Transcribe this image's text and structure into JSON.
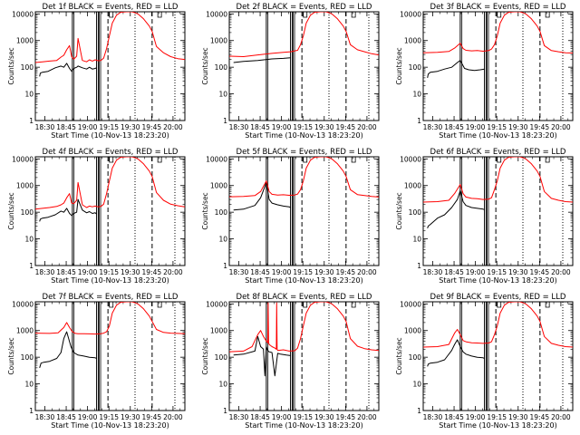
{
  "chart_data": {
    "type": "line",
    "layout": "3x3 grid of panels",
    "series_colors": {
      "events": "#000000",
      "lld": "#ff0000",
      "markers": "#000000"
    },
    "xlabel": "Start Time (10-Nov-13 18:23:20)",
    "ylabel": "Counts/sec",
    "xlim_minutes_since_start": [
      0,
      105
    ],
    "x_tick_labels": [
      "18:30",
      "18:45",
      "19:00",
      "19:15",
      "19:30",
      "19:45",
      "20:00"
    ],
    "x_tick_values_minutes": [
      6.67,
      21.67,
      36.67,
      51.67,
      66.67,
      81.67,
      96.67
    ],
    "yscale": "log",
    "ylim": [
      1,
      12000
    ],
    "y_tick_labels": [
      "1",
      "10",
      "100",
      "1000",
      "10000"
    ],
    "y_tick_values": [
      1,
      10,
      100,
      1000,
      10000
    ],
    "vertical_markers": {
      "solid": [
        26,
        43,
        44.7
      ],
      "dashed": [
        51,
        82
      ],
      "dotted": [
        70,
        98
      ]
    },
    "panels": [
      {
        "title": "Det 1f BLACK = Events, RED = LLD",
        "series": [
          {
            "key": "events",
            "x": [
              3,
              3.5,
              5,
              9,
              14,
              18,
              20,
              22,
              24,
              25.5,
              27,
              29,
              30,
              33,
              36,
              38,
              40,
              42,
              43
            ],
            "y": [
              45,
              60,
              65,
              70,
              95,
              110,
              100,
              140,
              90,
              70,
              90,
              100,
              110,
              95,
              85,
              100,
              85,
              90,
              95
            ]
          },
          {
            "key": "lld",
            "x": [
              0,
              5,
              10,
              15,
              18,
              20,
              22,
              24,
              25.5,
              27,
              29,
              30,
              33,
              36,
              38,
              40,
              42,
              44,
              46,
              48,
              50,
              52,
              54,
              57,
              60,
              64,
              68,
              72,
              76,
              80,
              82,
              85,
              90,
              95,
              100,
              105
            ],
            "y": [
              150,
              160,
              170,
              180,
              240,
              280,
              450,
              650,
              250,
              200,
              260,
              1200,
              180,
              160,
              190,
              170,
              190,
              175,
              180,
              220,
              500,
              1500,
              4500,
              9000,
              11500,
              12000,
              12000,
              10000,
              6500,
              3500,
              2200,
              600,
              350,
              250,
              210,
              195
            ]
          }
        ]
      },
      {
        "title": "Det 2f BLACK = Events, RED = LLD",
        "series": [
          {
            "key": "events",
            "x": [
              3,
              10,
              20,
              30,
              38,
              43
            ],
            "y": [
              150,
              165,
              180,
              205,
              215,
              225
            ]
          },
          {
            "key": "lld",
            "x": [
              0,
              10,
              20,
              30,
              38,
              43,
              46,
              48,
              50,
              52,
              54,
              57,
              60,
              64,
              68,
              72,
              76,
              80,
              82,
              85,
              90,
              95,
              100,
              105
            ],
            "y": [
              260,
              250,
              290,
              330,
              360,
              380,
              410,
              430,
              700,
              1500,
              4500,
              9000,
              11500,
              12000,
              12000,
              10000,
              6500,
              3500,
              2200,
              700,
              450,
              380,
              320,
              290
            ]
          }
        ]
      },
      {
        "title": "Det 3f BLACK = Events, RED = LLD",
        "series": [
          {
            "key": "events",
            "x": [
              3,
              3.5,
              5,
              10,
              15,
              20,
              24,
              26,
              29,
              32,
              36,
              40,
              43
            ],
            "y": [
              40,
              55,
              65,
              70,
              85,
              100,
              150,
              180,
              90,
              80,
              75,
              80,
              85
            ]
          },
          {
            "key": "lld",
            "x": [
              0,
              10,
              18,
              22,
              26,
              28,
              30,
              34,
              38,
              42,
              46,
              48,
              50,
              52,
              54,
              57,
              60,
              64,
              68,
              72,
              76,
              80,
              82,
              85,
              90,
              95,
              100,
              105
            ],
            "y": [
              350,
              360,
              390,
              520,
              800,
              500,
              430,
              410,
              420,
              400,
              420,
              480,
              700,
              1500,
              4500,
              9000,
              11500,
              12000,
              12000,
              10000,
              6500,
              3500,
              2200,
              650,
              420,
              380,
              350,
              340
            ]
          }
        ]
      },
      {
        "title": "Det 4f BLACK = Events, RED = LLD",
        "series": [
          {
            "key": "events",
            "x": [
              3,
              3.5,
              5,
              9,
              14,
              18,
              20,
              22,
              24,
              25.5,
              27,
              29,
              30,
              33,
              36,
              38,
              40,
              42,
              43
            ],
            "y": [
              45,
              55,
              60,
              65,
              80,
              110,
              100,
              140,
              90,
              75,
              90,
              100,
              300,
              120,
              95,
              105,
              90,
              95,
              85
            ]
          },
          {
            "key": "lld",
            "x": [
              0,
              5,
              10,
              15,
              18,
              20,
              22,
              24,
              25.5,
              27,
              29,
              30,
              33,
              36,
              38,
              40,
              42,
              44,
              46,
              48,
              50,
              52,
              54,
              57,
              60,
              64,
              68,
              72,
              76,
              80,
              82,
              85,
              90,
              95,
              100,
              105
            ],
            "y": [
              130,
              140,
              150,
              165,
              190,
              220,
              350,
              500,
              220,
              210,
              280,
              1300,
              190,
              150,
              170,
              160,
              170,
              160,
              165,
              200,
              500,
              1500,
              4500,
              9000,
              11500,
              12000,
              12000,
              10000,
              6500,
              3500,
              2200,
              550,
              280,
              200,
              175,
              160
            ]
          }
        ]
      },
      {
        "title": "Det 5f BLACK = Events, RED = LLD",
        "series": [
          {
            "key": "events",
            "x": [
              3,
              10,
              18,
              22,
              26,
              28,
              30,
              34,
              38,
              42,
              43
            ],
            "y": [
              120,
              130,
              180,
              350,
              1300,
              300,
              220,
              190,
              170,
              160,
              150
            ]
          },
          {
            "key": "lld",
            "x": [
              0,
              10,
              18,
              22,
              26,
              28,
              30,
              34,
              38,
              42,
              46,
              48,
              50,
              52,
              54,
              57,
              60,
              64,
              68,
              72,
              76,
              80,
              82,
              85,
              90,
              95,
              100,
              105
            ],
            "y": [
              380,
              390,
              420,
              600,
              1500,
              600,
              470,
              440,
              450,
              430,
              440,
              480,
              700,
              1500,
              4500,
              9000,
              11500,
              12000,
              12000,
              10000,
              6500,
              3500,
              2200,
              700,
              460,
              420,
              390,
              370
            ]
          }
        ]
      },
      {
        "title": "Det 6f BLACK = Events, RED = LLD",
        "series": [
          {
            "key": "events",
            "x": [
              3,
              3.5,
              5,
              10,
              15,
              20,
              24,
              26,
              28,
              30,
              34,
              38,
              42,
              43
            ],
            "y": [
              25,
              30,
              35,
              60,
              80,
              150,
              300,
              650,
              250,
              180,
              150,
              140,
              130,
              125
            ]
          },
          {
            "key": "lld",
            "x": [
              0,
              10,
              18,
              22,
              26,
              28,
              30,
              34,
              38,
              42,
              46,
              48,
              50,
              52,
              54,
              57,
              60,
              64,
              68,
              72,
              76,
              80,
              82,
              85,
              90,
              95,
              100,
              105
            ],
            "y": [
              240,
              250,
              280,
              500,
              1100,
              500,
              370,
              330,
              320,
              300,
              310,
              350,
              700,
              1500,
              4500,
              9000,
              11500,
              12000,
              12000,
              10000,
              6500,
              3500,
              2200,
              600,
              330,
              280,
              250,
              240
            ]
          }
        ]
      },
      {
        "title": "Det 7f BLACK = Events, RED = LLD",
        "series": [
          {
            "key": "events",
            "x": [
              3,
              4,
              6,
              10,
              15,
              18,
              20,
              22,
              25,
              27,
              30,
              34,
              38,
              42,
              43
            ],
            "y": [
              40,
              60,
              65,
              70,
              90,
              150,
              500,
              900,
              250,
              150,
              120,
              110,
              100,
              95,
              90
            ]
          },
          {
            "key": "lld",
            "x": [
              0,
              10,
              16,
              20,
              22,
              24,
              26,
              28,
              30,
              34,
              38,
              42,
              46,
              48,
              50,
              52,
              54,
              57,
              60,
              64,
              68,
              72,
              76,
              80,
              82,
              85,
              90,
              95,
              100,
              105
            ],
            "y": [
              800,
              780,
              820,
              1300,
              2000,
              1300,
              900,
              780,
              760,
              760,
              750,
              740,
              760,
              800,
              900,
              1500,
              4500,
              9000,
              11500,
              12000,
              12000,
              10000,
              6500,
              3500,
              2200,
              1100,
              850,
              800,
              780,
              760
            ]
          }
        ]
      },
      {
        "title": "Det 8f BLACK = Events, RED = LLD",
        "series": [
          {
            "key": "events",
            "x": [
              3,
              10,
              18,
              20,
              22,
              24,
              25,
              26,
              27,
              28,
              30,
              32,
              34,
              36,
              40,
              43
            ],
            "y": [
              120,
              130,
              170,
              600,
              250,
              200,
              20,
              250,
              180,
              160,
              150,
              20,
              140,
              130,
              120,
              115
            ]
          },
          {
            "key": "lld",
            "x": [
              0,
              10,
              16,
              20,
              22,
              24,
              26,
              27,
              27.3,
              27.6,
              28,
              30,
              32,
              33,
              33.3,
              33.6,
              34,
              38,
              42,
              46,
              48,
              50,
              52,
              54,
              57,
              60,
              64,
              68,
              72,
              76,
              80,
              82,
              85,
              90,
              95,
              100,
              105
            ],
            "y": [
              160,
              170,
              250,
              700,
              1000,
              600,
              400,
              350,
              11000,
              350,
              300,
              250,
              220,
              200,
              11000,
              200,
              180,
              190,
              170,
              175,
              220,
              500,
              1500,
              4500,
              9000,
              11500,
              12000,
              12000,
              10000,
              6500,
              3500,
              2200,
              500,
              260,
              210,
              190,
              180
            ]
          }
        ]
      },
      {
        "title": "Det 9f BLACK = Events, RED = LLD",
        "series": [
          {
            "key": "events",
            "x": [
              3,
              3.5,
              5,
              10,
              15,
              20,
              22,
              24,
              26,
              28,
              30,
              34,
              38,
              42,
              43
            ],
            "y": [
              45,
              55,
              60,
              65,
              80,
              180,
              300,
              450,
              250,
              160,
              130,
              110,
              100,
              95,
              90
            ]
          },
          {
            "key": "lld",
            "x": [
              0,
              10,
              18,
              22,
              24,
              26,
              28,
              30,
              34,
              38,
              42,
              46,
              48,
              50,
              52,
              54,
              57,
              60,
              64,
              68,
              72,
              76,
              80,
              82,
              85,
              90,
              95,
              100,
              105
            ],
            "y": [
              240,
              250,
              300,
              800,
              1100,
              700,
              420,
              380,
              350,
              340,
              330,
              340,
              380,
              700,
              1500,
              4500,
              9000,
              11500,
              12000,
              12000,
              10000,
              6500,
              3500,
              2200,
              600,
              330,
              280,
              250,
              240
            ]
          }
        ]
      }
    ]
  }
}
